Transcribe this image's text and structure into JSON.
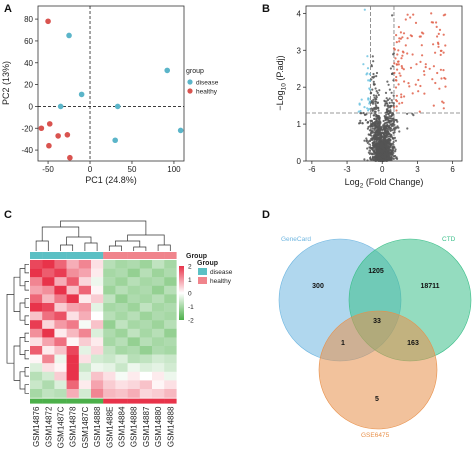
{
  "panels": {
    "A": {
      "letter": "A",
      "chart_data": {
        "type": "scatter",
        "xlabel": "PC1 (24.8%)",
        "ylabel": "PC2 (13%)",
        "xlim": [
          -62,
          112
        ],
        "ylim": [
          -50,
          92
        ],
        "x_ticks": [
          "-50",
          "0",
          "50",
          "100"
        ],
        "x_tick_values": [
          -50,
          0,
          50,
          100
        ],
        "y_ticks": [
          "80",
          "60",
          "40",
          "20",
          "0",
          "-20",
          "-40"
        ],
        "y_tick_values": [
          80,
          60,
          40,
          20,
          0,
          -20,
          -40
        ],
        "legend": {
          "title": "group",
          "entries": [
            "disease",
            "healthy"
          ],
          "placement": "right"
        },
        "series": [
          {
            "name": "disease",
            "color": "#5bb5c9",
            "points": [
              [
                -25,
                65
              ],
              [
                -10,
                11
              ],
              [
                -35,
                0
              ],
              [
                33,
                0
              ],
              [
                92,
                33
              ],
              [
                108,
                -22
              ],
              [
                30,
                -31
              ]
            ]
          },
          {
            "name": "healthy",
            "color": "#d9534f",
            "points": [
              [
                -50,
                78
              ],
              [
                -58,
                -20
              ],
              [
                -48,
                -16
              ],
              [
                -38,
                -27
              ],
              [
                -27,
                -26
              ],
              [
                -49,
                -36
              ],
              [
                -24,
                -47
              ]
            ]
          }
        ]
      }
    },
    "B": {
      "letter": "B",
      "chart_data": {
        "type": "scatter",
        "xlabel_main": "Log",
        "xlabel_sub": "2",
        "xlabel_rest": " (Fold Change)",
        "ylabel_pre": "−Log",
        "ylabel_sub": "10",
        "ylabel_rest": " (P.adj)",
        "xlim": [
          -6.5,
          6.8
        ],
        "ylim": [
          0,
          4.2
        ],
        "x_ticks": [
          "-6",
          "-3",
          "0",
          "3",
          "6"
        ],
        "x_tick_values": [
          -6,
          -3,
          0,
          3,
          6
        ],
        "y_ticks": [
          "0",
          "1",
          "2",
          "3",
          "4"
        ],
        "y_tick_values": [
          0,
          1,
          2,
          3,
          4
        ],
        "vlines": [
          -1,
          1
        ],
        "hline": 1.3,
        "colors": {
          "up": "#e0604a",
          "down": "#6ec3e0",
          "ns": "#555555"
        }
      }
    },
    "C": {
      "letter": "C",
      "chart_data": {
        "type": "heatmap",
        "legend_scale": [
          "2",
          "1",
          "0",
          "-1",
          "-2"
        ],
        "legend_scale_values": [
          2,
          1,
          0,
          -1,
          -2
        ],
        "group_legend": {
          "title": "Group",
          "entries": [
            "disease",
            "healthy"
          ],
          "colors": [
            "#5bc0c4",
            "#f0848c"
          ]
        },
        "column_labels": [
          "GSM14876",
          "GSM14872",
          "GSM1487C",
          "GSM14878",
          "GSM1487C",
          "GSM14888",
          "GSM1488E",
          "GSM14884",
          "GSM14888",
          "GSM14887",
          "GSM14880",
          "GSM14888"
        ],
        "column_groups": [
          "disease",
          "disease",
          "disease",
          "disease",
          "disease",
          "disease",
          "healthy",
          "healthy",
          "healthy",
          "healthy",
          "healthy",
          "healthy"
        ],
        "values": [
          [
            1.8,
            2.2,
            1.5,
            0.8,
            1.2,
            0.3,
            -0.8,
            -1.0,
            -0.9,
            -1.1,
            -0.7,
            -1.0
          ],
          [
            2.0,
            1.6,
            1.9,
            1.1,
            0.9,
            0.2,
            -1.0,
            -0.9,
            -1.2,
            -0.8,
            -1.1,
            -0.9
          ],
          [
            1.2,
            2.3,
            0.8,
            1.6,
            0.4,
            -0.2,
            -0.9,
            -1.1,
            -0.8,
            -1.0,
            -0.9,
            -1.2
          ],
          [
            0.9,
            1.1,
            2.1,
            0.6,
            1.5,
            0.1,
            -1.1,
            -0.8,
            -1.0,
            -0.9,
            -1.2,
            -0.8
          ],
          [
            1.5,
            0.7,
            1.3,
            2.0,
            0.2,
            0.5,
            -0.7,
            -1.2,
            -0.9,
            -1.0,
            -0.8,
            -1.1
          ],
          [
            2.2,
            1.8,
            0.5,
            0.9,
            1.0,
            -0.3,
            -1.0,
            -0.9,
            -1.1,
            -0.7,
            -1.0,
            -0.9
          ],
          [
            0.6,
            1.4,
            1.7,
            0.3,
            0.8,
            0.0,
            -0.8,
            -1.0,
            -0.8,
            -1.1,
            -0.9,
            -1.0
          ],
          [
            1.9,
            0.4,
            1.0,
            1.3,
            -0.1,
            0.6,
            -1.2,
            -0.7,
            -1.0,
            -0.9,
            -1.1,
            -0.8
          ],
          [
            1.1,
            2.0,
            0.2,
            0.7,
            1.2,
            -0.4,
            -0.9,
            -1.1,
            -0.7,
            -1.0,
            -0.8,
            -1.2
          ],
          [
            0.3,
            0.9,
            1.4,
            0.1,
            0.5,
            0.2,
            -1.0,
            -0.8,
            -1.2,
            -0.8,
            -1.0,
            -0.9
          ],
          [
            1.6,
            0.2,
            0.6,
            1.8,
            -0.3,
            0.4,
            -0.7,
            -1.0,
            -0.9,
            -1.2,
            -0.9,
            -1.0
          ],
          [
            0.1,
            1.2,
            -0.2,
            2.4,
            0.3,
            -0.5,
            -0.6,
            -0.4,
            -0.8,
            -0.7,
            -0.5,
            -0.6
          ],
          [
            -0.4,
            0.3,
            0.1,
            2.3,
            -0.6,
            -0.2,
            -0.3,
            -0.6,
            -0.2,
            -0.4,
            -0.3,
            -0.5
          ],
          [
            -0.8,
            -0.5,
            0.5,
            2.0,
            -0.3,
            0.6,
            0.3,
            -0.1,
            0.2,
            0.0,
            0.2,
            -0.2
          ],
          [
            -0.6,
            -0.9,
            -0.4,
            1.5,
            0.2,
            0.9,
            0.5,
            0.3,
            0.4,
            0.6,
            0.1,
            0.3
          ],
          [
            -1.0,
            -0.7,
            -0.8,
            0.8,
            -0.5,
            1.2,
            0.7,
            0.6,
            0.8,
            0.4,
            0.5,
            0.7
          ]
        ]
      }
    },
    "D": {
      "letter": "D",
      "venn": {
        "sets": [
          {
            "name": "GeneCard",
            "color": "#6fb6e0"
          },
          {
            "name": "CTD",
            "color": "#3cbf8a"
          },
          {
            "name": "GSE6475",
            "color": "#e8904a"
          }
        ],
        "counts": {
          "genecard_only": "300",
          "ctd_only": "18711",
          "gse_only": "5",
          "genecard_ctd": "1205",
          "genecard_gse": "1",
          "ctd_gse": "163",
          "all": "33"
        }
      }
    }
  }
}
